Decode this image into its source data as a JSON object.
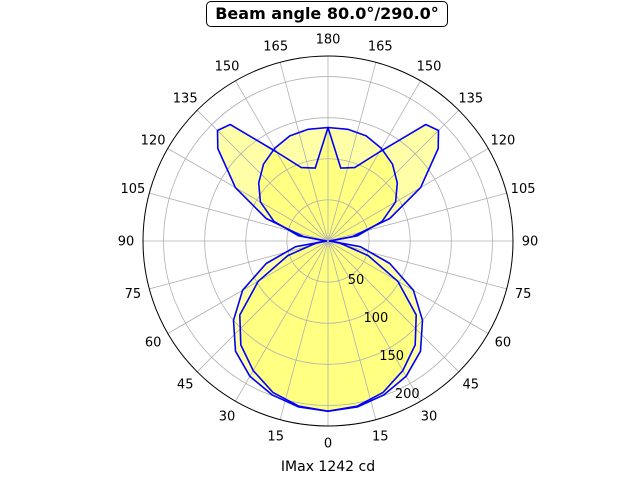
{
  "chart_data": {
    "type": "polar-area",
    "title": "Beam angle 80.0°/290.0°",
    "xlabel": "IMax 1242 cd",
    "angle_ticks_left": [
      "0",
      "15",
      "30",
      "45",
      "60",
      "75",
      "90",
      "105",
      "120",
      "135",
      "150",
      "165",
      "180"
    ],
    "angle_ticks_right": [
      "15",
      "30",
      "45",
      "60",
      "75",
      "90",
      "105",
      "120",
      "135",
      "150",
      "165"
    ],
    "radial_ticks": [
      50,
      100,
      150,
      200
    ],
    "rlim": [
      0,
      225
    ],
    "grid": true,
    "zero_location": "bottom",
    "series": [
      {
        "curve": "outer",
        "color": "#0000ff",
        "fill": "#ffff66",
        "theta_deg": [
          0,
          10,
          20,
          30,
          40,
          50,
          60,
          70,
          80,
          90,
          100,
          110,
          120,
          130,
          135,
          140,
          150,
          160,
          170,
          180
        ],
        "r": [
          207,
          204,
          196,
          182,
          165,
          140,
          98,
          52,
          15,
          2,
          30,
          80,
          130,
          175,
          190,
          185,
          125,
          95,
          90,
          138
        ]
      },
      {
        "curve": "inner",
        "color": "#0000ff",
        "fill": "#ffff66",
        "theta_deg": [
          0,
          10,
          20,
          30,
          40,
          50,
          60,
          70,
          80,
          90,
          100,
          110,
          120,
          130,
          140,
          150,
          160,
          170,
          180
        ],
        "r": [
          207,
          205,
          199,
          190,
          175,
          150,
          120,
          80,
          40,
          2,
          36,
          70,
          95,
          110,
          122,
          130,
          136,
          138,
          138
        ]
      }
    ]
  }
}
